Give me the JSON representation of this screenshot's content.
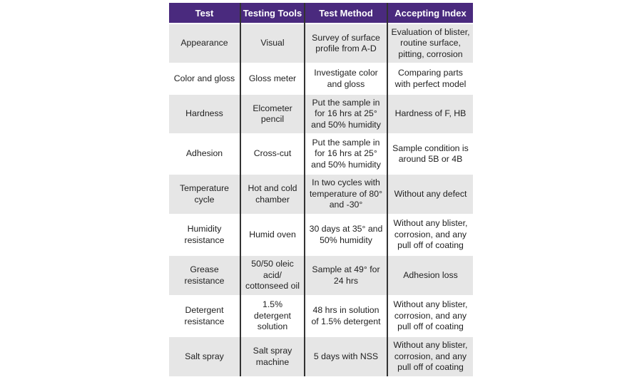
{
  "table": {
    "headers": [
      "Test",
      "Testing Tools",
      "Test Method",
      "Accepting Index"
    ],
    "header_color": "#4a2a7e",
    "rows": [
      [
        "Appearance",
        "Visual",
        "Survey of surface profile from A-D",
        "Evaluation of blister, routine surface, pitting, corrosion"
      ],
      [
        "Color and gloss",
        "Gloss meter",
        "Investigate color and gloss",
        "Comparing parts with perfect model"
      ],
      [
        "Hardness",
        "Elcometer pencil",
        "Put the sample in for 16 hrs at 25° and 50% humidity",
        "Hardness of F, HB"
      ],
      [
        "Adhesion",
        "Cross-cut",
        "Put the sample in for 16 hrs at 25° and 50% humidity",
        "Sample condition is around 5B or 4B"
      ],
      [
        "Temperature cycle",
        "Hot and cold chamber",
        "In two cycles with temperature of 80° and -30°",
        "Without any defect"
      ],
      [
        "Humidity resistance",
        "Humid oven",
        "30 days at 35° and 50% humidity",
        "Without any blister, corrosion, and any pull off of coating"
      ],
      [
        "Grease resistance",
        "50/50 oleic acid/ cottonseed oil",
        "Sample at 49° for 24 hrs",
        "Adhesion loss"
      ],
      [
        "Detergent resistance",
        "1.5% detergent solution",
        "48 hrs in solution of 1.5% detergent",
        "Without any blister, corrosion, and any pull off of coating"
      ],
      [
        "Salt spray",
        "Salt spray machine",
        "5 days with NSS",
        "Without any blister, corrosion, and any pull off of coating"
      ]
    ]
  }
}
